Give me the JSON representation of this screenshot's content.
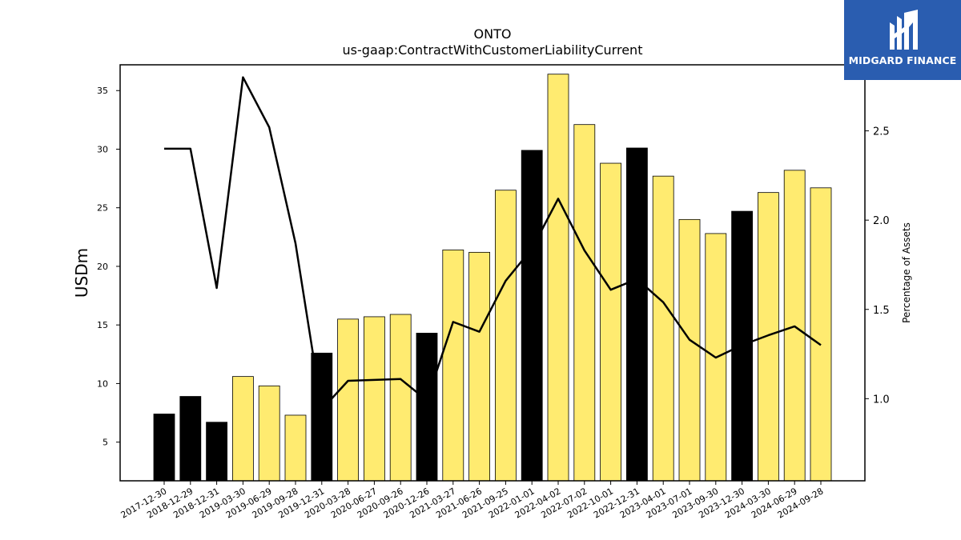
{
  "title": "ONTO",
  "subtitle": "us-gaap:ContractWithCustomerLiabilityCurrent",
  "logo": {
    "text": "MIDGARD FINANCE",
    "background": "#2a5db0"
  },
  "chart_data": {
    "type": "bar",
    "title": "ONTO",
    "subtitle": "us-gaap:ContractWithCustomerLiabilityCurrent",
    "xlabel": "",
    "ylabel": "USDm",
    "y2label": "Percentage of Assets",
    "ylim": [
      1.7,
      37.2
    ],
    "y2lim": [
      0.54,
      2.87
    ],
    "yticks": [
      5,
      10,
      15,
      20,
      25,
      30,
      35
    ],
    "y2ticks": [
      "1.0",
      "1.5",
      "2.0",
      "2.5"
    ],
    "categories": [
      "2017-12-30",
      "2018-12-29",
      "2018-12-31",
      "2019-03-30",
      "2019-06-29",
      "2019-09-28",
      "2019-12-31",
      "2020-03-28",
      "2020-06-27",
      "2020-09-26",
      "2020-12-26",
      "2021-03-27",
      "2021-06-26",
      "2021-09-25",
      "2022-01-01",
      "2022-04-02",
      "2022-07-02",
      "2022-10-01",
      "2022-12-31",
      "2023-04-01",
      "2023-07-01",
      "2023-09-30",
      "2023-12-30",
      "2024-03-30",
      "2024-06-29",
      "2024-09-28"
    ],
    "series": [
      {
        "chart": "bar",
        "axis": "left",
        "values": [
          7.4,
          8.9,
          6.7,
          10.6,
          9.8,
          7.3,
          12.6,
          15.5,
          15.7,
          15.9,
          14.3,
          21.4,
          21.2,
          26.5,
          29.9,
          36.4,
          32.1,
          28.8,
          30.1,
          27.7,
          24.0,
          22.8,
          24.7,
          26.3,
          28.2,
          26.7
        ],
        "fills": [
          "#000000",
          "#000000",
          "#000000",
          "#ffeb70",
          "#ffeb70",
          "#ffeb70",
          "#000000",
          "#ffeb70",
          "#ffeb70",
          "#ffeb70",
          "#000000",
          "#ffeb70",
          "#ffeb70",
          "#ffeb70",
          "#000000",
          "#ffeb70",
          "#ffeb70",
          "#ffeb70",
          "#000000",
          "#ffeb70",
          "#ffeb70",
          "#ffeb70",
          "#000000",
          "#ffeb70",
          "#ffeb70",
          "#ffeb70"
        ]
      },
      {
        "chart": "line",
        "axis": "right",
        "color": "#000000",
        "values": [
          2.4,
          2.4,
          1.62,
          2.8,
          2.52,
          1.87,
          0.94,
          1.1,
          1.105,
          1.11,
          0.99,
          1.43,
          1.375,
          1.66,
          1.84,
          2.12,
          1.83,
          1.61,
          1.67,
          1.54,
          1.33,
          1.23,
          1.3,
          1.355,
          1.405,
          1.3
        ]
      }
    ],
    "grid": false,
    "legend": "none"
  }
}
